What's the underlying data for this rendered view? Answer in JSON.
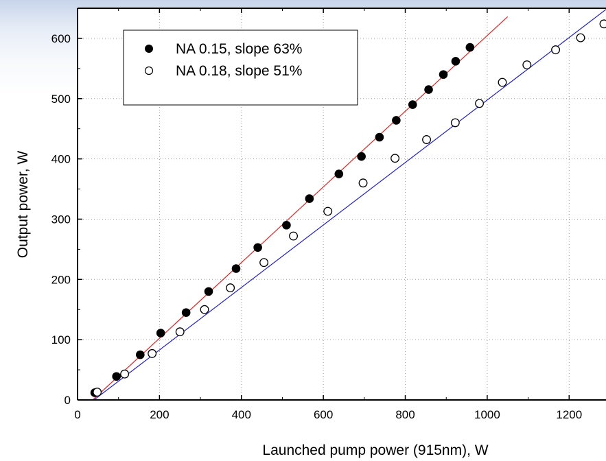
{
  "chart_data": {
    "type": "scatter",
    "xlabel": "Launched pump power (915nm),  W",
    "ylabel": "Output power,  W",
    "xlim": [
      0,
      1290
    ],
    "ylim": [
      0,
      650
    ],
    "x_ticks": [
      0,
      200,
      400,
      600,
      800,
      1000,
      1200
    ],
    "y_ticks": [
      0,
      100,
      200,
      300,
      400,
      500,
      600
    ],
    "grid": true,
    "legend_position": "top-left",
    "series": [
      {
        "name": "NA 0.15, slope 63%",
        "marker": "filled-circle",
        "fit_color": "#e8201f",
        "fit_line": {
          "x": [
            37,
            1050
          ],
          "y": [
            0,
            636
          ]
        },
        "x": [
          42,
          95,
          153,
          203,
          265,
          320,
          387,
          440,
          510,
          566,
          638,
          693,
          737,
          778,
          818,
          857,
          893,
          923,
          958
        ],
        "y": [
          12,
          39,
          75,
          111,
          145,
          180,
          218,
          253,
          290,
          334,
          375,
          404,
          436,
          464,
          490,
          515,
          540,
          562,
          585
        ]
      },
      {
        "name": "NA 0.18, slope 51%",
        "marker": "open-circle",
        "fit_color": "#1f1fd6",
        "fit_line": {
          "x": [
            40,
            1290
          ],
          "y": [
            0,
            648
          ]
        },
        "x": [
          48,
          115,
          182,
          250,
          310,
          373,
          455,
          527,
          611,
          697,
          775,
          852,
          922,
          981,
          1037,
          1097,
          1167,
          1228,
          1285
        ],
        "y": [
          13,
          43,
          77,
          113,
          150,
          186,
          228,
          272,
          313,
          360,
          401,
          432,
          460,
          492,
          527,
          556,
          581,
          601,
          624
        ]
      }
    ]
  }
}
